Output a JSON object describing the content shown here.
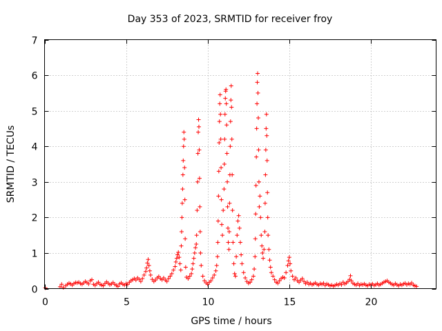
{
  "chart_data": {
    "type": "scatter",
    "title": "Day 353 of 2023, SRMTID for receiver froy",
    "xlabel": "GPS time / hours",
    "ylabel": "SRMTID / TECUs",
    "xlim": [
      0,
      24
    ],
    "ylim": [
      0,
      7
    ],
    "xticks": [
      0,
      5,
      10,
      15,
      20
    ],
    "yticks": [
      0,
      1,
      2,
      3,
      4,
      5,
      6,
      7
    ],
    "grid": true,
    "marker": "+",
    "color": "#ff0000",
    "series": [
      {
        "name": "SRMTID",
        "points": [
          [
            0.05,
            0.02
          ],
          [
            0.95,
            0.05
          ],
          [
            1.05,
            0.12
          ],
          [
            1.15,
            0.03
          ],
          [
            1.3,
            0.08
          ],
          [
            1.4,
            0.12
          ],
          [
            1.5,
            0.15
          ],
          [
            1.6,
            0.13
          ],
          [
            1.7,
            0.1
          ],
          [
            1.8,
            0.14
          ],
          [
            1.9,
            0.17
          ],
          [
            2.0,
            0.16
          ],
          [
            2.1,
            0.18
          ],
          [
            2.2,
            0.14
          ],
          [
            2.3,
            0.12
          ],
          [
            2.4,
            0.16
          ],
          [
            2.5,
            0.2
          ],
          [
            2.6,
            0.17
          ],
          [
            2.7,
            0.13
          ],
          [
            2.8,
            0.22
          ],
          [
            2.9,
            0.25
          ],
          [
            3.0,
            0.12
          ],
          [
            3.1,
            0.09
          ],
          [
            3.2,
            0.14
          ],
          [
            3.3,
            0.18
          ],
          [
            3.4,
            0.12
          ],
          [
            3.5,
            0.1
          ],
          [
            3.6,
            0.08
          ],
          [
            3.7,
            0.14
          ],
          [
            3.8,
            0.19
          ],
          [
            3.9,
            0.15
          ],
          [
            4.0,
            0.11
          ],
          [
            4.1,
            0.13
          ],
          [
            4.2,
            0.17
          ],
          [
            4.3,
            0.12
          ],
          [
            4.4,
            0.09
          ],
          [
            4.5,
            0.06
          ],
          [
            4.6,
            0.13
          ],
          [
            4.7,
            0.16
          ],
          [
            4.8,
            0.12
          ],
          [
            4.9,
            0.1
          ],
          [
            5.0,
            0.14
          ],
          [
            5.1,
            0.12
          ],
          [
            5.2,
            0.18
          ],
          [
            5.3,
            0.22
          ],
          [
            5.4,
            0.25
          ],
          [
            5.5,
            0.28
          ],
          [
            5.6,
            0.24
          ],
          [
            5.7,
            0.3
          ],
          [
            5.8,
            0.26
          ],
          [
            5.9,
            0.2
          ],
          [
            6.0,
            0.28
          ],
          [
            6.1,
            0.38
          ],
          [
            6.2,
            0.48
          ],
          [
            6.25,
            0.58
          ],
          [
            6.3,
            0.72
          ],
          [
            6.35,
            0.82
          ],
          [
            6.4,
            0.65
          ],
          [
            6.45,
            0.5
          ],
          [
            6.5,
            0.38
          ],
          [
            6.6,
            0.26
          ],
          [
            6.7,
            0.2
          ],
          [
            6.8,
            0.24
          ],
          [
            6.9,
            0.3
          ],
          [
            7.0,
            0.34
          ],
          [
            7.1,
            0.28
          ],
          [
            7.2,
            0.25
          ],
          [
            7.3,
            0.3
          ],
          [
            7.4,
            0.24
          ],
          [
            7.5,
            0.2
          ],
          [
            7.6,
            0.28
          ],
          [
            7.7,
            0.35
          ],
          [
            7.8,
            0.42
          ],
          [
            7.9,
            0.52
          ],
          [
            8.0,
            0.62
          ],
          [
            8.05,
            0.75
          ],
          [
            8.1,
            0.85
          ],
          [
            8.15,
            0.95
          ],
          [
            8.2,
            1.02
          ],
          [
            8.25,
            0.88
          ],
          [
            8.3,
            0.7
          ],
          [
            8.35,
            0.52
          ],
          [
            8.38,
            1.2
          ],
          [
            8.4,
            1.6
          ],
          [
            8.42,
            2.0
          ],
          [
            8.44,
            2.4
          ],
          [
            8.46,
            2.8
          ],
          [
            8.48,
            3.2
          ],
          [
            8.5,
            3.6
          ],
          [
            8.52,
            4.0
          ],
          [
            8.54,
            4.4
          ],
          [
            8.56,
            4.2
          ],
          [
            8.58,
            3.4
          ],
          [
            8.6,
            2.5
          ],
          [
            8.62,
            1.4
          ],
          [
            8.65,
            0.6
          ],
          [
            8.7,
            0.32
          ],
          [
            8.8,
            0.28
          ],
          [
            8.9,
            0.35
          ],
          [
            9.0,
            0.42
          ],
          [
            9.05,
            0.55
          ],
          [
            9.1,
            0.7
          ],
          [
            9.15,
            0.85
          ],
          [
            9.2,
            1.0
          ],
          [
            9.25,
            1.15
          ],
          [
            9.3,
            1.25
          ],
          [
            9.32,
            1.5
          ],
          [
            9.35,
            2.2
          ],
          [
            9.38,
            3.0
          ],
          [
            9.4,
            3.8
          ],
          [
            9.42,
            4.4
          ],
          [
            9.44,
            4.75
          ],
          [
            9.46,
            4.55
          ],
          [
            9.48,
            3.9
          ],
          [
            9.5,
            3.1
          ],
          [
            9.52,
            2.3
          ],
          [
            9.54,
            1.6
          ],
          [
            9.56,
            1.0
          ],
          [
            9.6,
            0.65
          ],
          [
            9.7,
            0.35
          ],
          [
            9.8,
            0.22
          ],
          [
            9.9,
            0.16
          ],
          [
            10.0,
            0.12
          ],
          [
            10.1,
            0.18
          ],
          [
            10.2,
            0.22
          ],
          [
            10.3,
            0.3
          ],
          [
            10.4,
            0.38
          ],
          [
            10.5,
            0.5
          ],
          [
            10.55,
            0.65
          ],
          [
            10.6,
            0.9
          ],
          [
            10.62,
            1.3
          ],
          [
            10.64,
            1.9
          ],
          [
            10.66,
            2.6
          ],
          [
            10.68,
            3.3
          ],
          [
            10.7,
            4.1
          ],
          [
            10.72,
            4.7
          ],
          [
            10.74,
            5.2
          ],
          [
            10.76,
            5.45
          ],
          [
            10.78,
            4.9
          ],
          [
            10.8,
            4.2
          ],
          [
            10.82,
            3.4
          ],
          [
            10.84,
            2.5
          ],
          [
            10.86,
            1.8
          ],
          [
            10.9,
            1.5
          ],
          [
            10.95,
            2.2
          ],
          [
            11.0,
            2.8
          ],
          [
            11.02,
            3.5
          ],
          [
            11.04,
            4.2
          ],
          [
            11.06,
            4.9
          ],
          [
            11.08,
            5.35
          ],
          [
            11.1,
            5.55
          ],
          [
            11.12,
            5.6
          ],
          [
            11.14,
            5.2
          ],
          [
            11.16,
            4.6
          ],
          [
            11.18,
            3.8
          ],
          [
            11.2,
            3.0
          ],
          [
            11.22,
            2.3
          ],
          [
            11.24,
            1.7
          ],
          [
            11.26,
            1.3
          ],
          [
            11.3,
            1.1
          ],
          [
            11.32,
            1.6
          ],
          [
            11.34,
            2.4
          ],
          [
            11.36,
            3.2
          ],
          [
            11.38,
            4.0
          ],
          [
            11.4,
            4.7
          ],
          [
            11.42,
            5.3
          ],
          [
            11.44,
            5.7
          ],
          [
            11.46,
            5.1
          ],
          [
            11.48,
            4.2
          ],
          [
            11.5,
            3.2
          ],
          [
            11.52,
            2.2
          ],
          [
            11.55,
            1.3
          ],
          [
            11.6,
            0.7
          ],
          [
            11.65,
            0.42
          ],
          [
            11.7,
            0.35
          ],
          [
            11.75,
            0.9
          ],
          [
            11.8,
            1.5
          ],
          [
            11.85,
            1.9
          ],
          [
            11.9,
            2.05
          ],
          [
            11.95,
            1.7
          ],
          [
            12.0,
            1.3
          ],
          [
            12.05,
            0.95
          ],
          [
            12.1,
            0.7
          ],
          [
            12.2,
            0.45
          ],
          [
            12.3,
            0.3
          ],
          [
            12.4,
            0.2
          ],
          [
            12.5,
            0.15
          ],
          [
            12.6,
            0.18
          ],
          [
            12.7,
            0.25
          ],
          [
            12.8,
            0.35
          ],
          [
            12.85,
            0.55
          ],
          [
            12.9,
            0.9
          ],
          [
            12.92,
            1.4
          ],
          [
            12.94,
            2.1
          ],
          [
            12.96,
            2.9
          ],
          [
            12.98,
            3.7
          ],
          [
            13.0,
            4.5
          ],
          [
            13.02,
            5.2
          ],
          [
            13.04,
            5.8
          ],
          [
            13.06,
            6.05
          ],
          [
            13.08,
            5.5
          ],
          [
            13.1,
            4.8
          ],
          [
            13.12,
            3.9
          ],
          [
            13.14,
            3.0
          ],
          [
            13.16,
            2.3
          ],
          [
            13.2,
            2.6
          ],
          [
            13.24,
            2.0
          ],
          [
            13.28,
            1.5
          ],
          [
            13.32,
            1.2
          ],
          [
            13.36,
            1.0
          ],
          [
            13.4,
            0.85
          ],
          [
            13.45,
            1.1
          ],
          [
            13.5,
            1.6
          ],
          [
            13.52,
            2.4
          ],
          [
            13.54,
            3.2
          ],
          [
            13.56,
            3.9
          ],
          [
            13.58,
            4.5
          ],
          [
            13.6,
            4.9
          ],
          [
            13.62,
            4.3
          ],
          [
            13.64,
            3.6
          ],
          [
            13.66,
            2.7
          ],
          [
            13.68,
            2.0
          ],
          [
            13.7,
            1.5
          ],
          [
            13.75,
            1.1
          ],
          [
            13.8,
            0.8
          ],
          [
            13.85,
            0.6
          ],
          [
            13.9,
            0.45
          ],
          [
            14.0,
            0.35
          ],
          [
            14.1,
            0.25
          ],
          [
            14.2,
            0.18
          ],
          [
            14.3,
            0.15
          ],
          [
            14.4,
            0.22
          ],
          [
            14.5,
            0.28
          ],
          [
            14.6,
            0.32
          ],
          [
            14.7,
            0.3
          ],
          [
            14.8,
            0.45
          ],
          [
            14.9,
            0.65
          ],
          [
            14.95,
            0.78
          ],
          [
            15.0,
            0.88
          ],
          [
            15.05,
            0.7
          ],
          [
            15.1,
            0.5
          ],
          [
            15.2,
            0.35
          ],
          [
            15.3,
            0.25
          ],
          [
            15.4,
            0.3
          ],
          [
            15.5,
            0.22
          ],
          [
            15.6,
            0.18
          ],
          [
            15.7,
            0.24
          ],
          [
            15.8,
            0.28
          ],
          [
            15.9,
            0.2
          ],
          [
            16.0,
            0.14
          ],
          [
            16.1,
            0.18
          ],
          [
            16.2,
            0.12
          ],
          [
            16.3,
            0.15
          ],
          [
            16.4,
            0.11
          ],
          [
            16.5,
            0.13
          ],
          [
            16.6,
            0.16
          ],
          [
            16.7,
            0.12
          ],
          [
            16.8,
            0.1
          ],
          [
            16.9,
            0.14
          ],
          [
            17.0,
            0.12
          ],
          [
            17.1,
            0.15
          ],
          [
            17.2,
            0.09
          ],
          [
            17.3,
            0.13
          ],
          [
            17.4,
            0.11
          ],
          [
            17.5,
            0.08
          ],
          [
            17.6,
            0.1
          ],
          [
            17.7,
            0.07
          ],
          [
            17.8,
            0.09
          ],
          [
            17.9,
            0.12
          ],
          [
            18.0,
            0.1
          ],
          [
            18.1,
            0.14
          ],
          [
            18.2,
            0.11
          ],
          [
            18.3,
            0.18
          ],
          [
            18.4,
            0.13
          ],
          [
            18.5,
            0.16
          ],
          [
            18.6,
            0.2
          ],
          [
            18.7,
            0.26
          ],
          [
            18.75,
            0.36
          ],
          [
            18.8,
            0.22
          ],
          [
            18.9,
            0.15
          ],
          [
            19.0,
            0.12
          ],
          [
            19.1,
            0.1
          ],
          [
            19.2,
            0.14
          ],
          [
            19.3,
            0.09
          ],
          [
            19.4,
            0.12
          ],
          [
            19.5,
            0.11
          ],
          [
            19.6,
            0.13
          ],
          [
            19.7,
            0.1
          ],
          [
            19.8,
            0.08
          ],
          [
            19.9,
            0.12
          ],
          [
            20.0,
            0.1
          ],
          [
            20.1,
            0.13
          ],
          [
            20.2,
            0.09
          ],
          [
            20.3,
            0.11
          ],
          [
            20.4,
            0.14
          ],
          [
            20.5,
            0.1
          ],
          [
            20.6,
            0.12
          ],
          [
            20.7,
            0.15
          ],
          [
            20.8,
            0.18
          ],
          [
            20.9,
            0.2
          ],
          [
            21.0,
            0.22
          ],
          [
            21.1,
            0.18
          ],
          [
            21.2,
            0.15
          ],
          [
            21.3,
            0.12
          ],
          [
            21.4,
            0.1
          ],
          [
            21.5,
            0.14
          ],
          [
            21.6,
            0.11
          ],
          [
            21.7,
            0.08
          ],
          [
            21.8,
            0.12
          ],
          [
            21.9,
            0.1
          ],
          [
            22.0,
            0.13
          ],
          [
            22.1,
            0.15
          ],
          [
            22.2,
            0.11
          ],
          [
            22.3,
            0.14
          ],
          [
            22.4,
            0.12
          ],
          [
            22.5,
            0.16
          ],
          [
            22.6,
            0.1
          ],
          [
            22.7,
            0.08
          ],
          [
            22.8,
            0.06
          ]
        ]
      }
    ]
  }
}
